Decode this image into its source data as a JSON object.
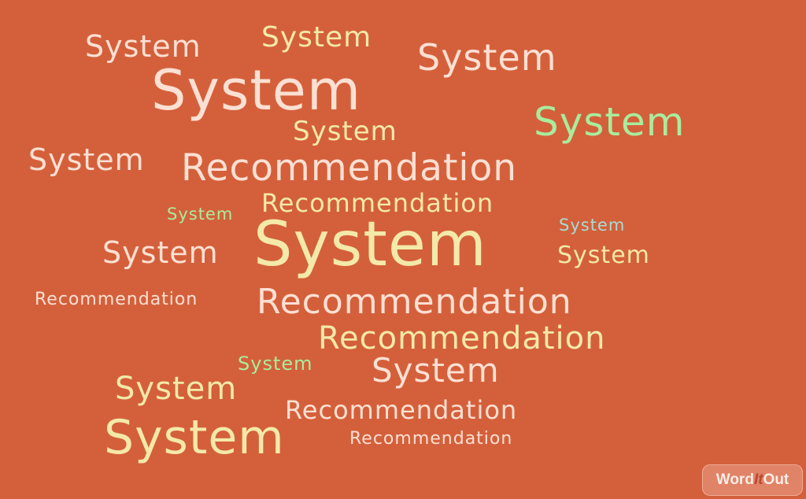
{
  "cloud": {
    "words": [
      "System",
      "System",
      "System",
      "System",
      "System",
      "System",
      "System",
      "Recommendation",
      "System",
      "Recommendation",
      "System",
      "System",
      "System",
      "System",
      "Recommendation",
      "Recommendation",
      "Recommendation",
      "System",
      "System",
      "System",
      "Recommendation",
      "System",
      "Recommendation"
    ]
  },
  "logo": {
    "part1": "Word",
    "part2": "It",
    "part3": "Out"
  },
  "colors": {
    "background": "#d4603b",
    "peach": "#fbe0d3",
    "cream": "#f3e9a8",
    "green": "#a8ec9c",
    "teal": "#a6dcd4"
  }
}
